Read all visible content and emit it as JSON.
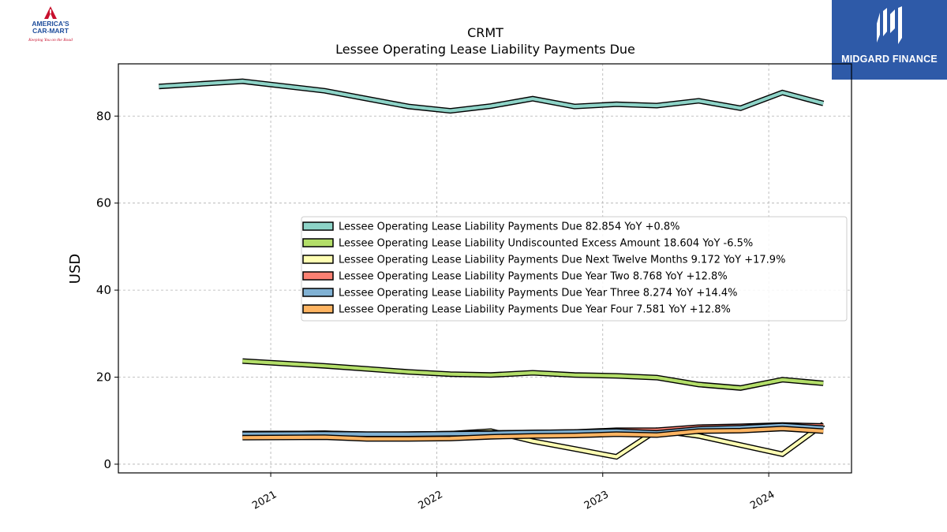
{
  "logos": {
    "left": {
      "brand_lines": [
        "AMERICA'S",
        "CAR-MART"
      ],
      "tagline": "Keeping You on the Road"
    },
    "right": {
      "wordmark": "MIDGARD FINANCE"
    }
  },
  "chart_data": {
    "type": "line",
    "title": "CRMT",
    "subtitle": "Lessee Operating Lease Liability Payments Due",
    "xlabel": "",
    "ylabel": "USD",
    "xlim": [
      "2020-02-01",
      "2024-07-01"
    ],
    "ylim": [
      -2,
      92
    ],
    "yticks": [
      0,
      20,
      40,
      60,
      80
    ],
    "xticks": [
      "2021-01-01",
      "2022-01-01",
      "2023-01-01",
      "2024-01-01"
    ],
    "xtick_labels": [
      "2021",
      "2022",
      "2023",
      "2024"
    ],
    "grid": true,
    "legend_position": "center-right",
    "series": [
      {
        "name": "Lessee Operating Lease Liability Payments Due",
        "legend_label": "Lessee Operating Lease Liability Payments Due  82.854 YoY +0.8%",
        "color": "#8dd3c7",
        "x": [
          "2020-04-30",
          "2020-10-31",
          "2021-04-30",
          "2021-07-31",
          "2021-10-31",
          "2022-01-31",
          "2022-04-30",
          "2022-07-31",
          "2022-10-31",
          "2023-01-31",
          "2023-04-30",
          "2023-07-31",
          "2023-10-31",
          "2024-01-31",
          "2024-04-30"
        ],
        "values": [
          86.8,
          88.0,
          85.8,
          84.0,
          82.2,
          81.2,
          82.3,
          84.0,
          82.2,
          82.7,
          82.4,
          83.5,
          81.8,
          85.4,
          82.9
        ]
      },
      {
        "name": "Lessee Operating Lease Liability Undiscounted Excess Amount",
        "legend_label": "Lessee Operating Lease Liability Undiscounted Excess Amount  18.604 YoY -6.5%",
        "color": "#b3de69",
        "x": [
          "2020-10-31",
          "2021-04-30",
          "2021-07-31",
          "2021-10-31",
          "2022-01-31",
          "2022-04-30",
          "2022-07-31",
          "2022-10-31",
          "2023-01-31",
          "2023-04-30",
          "2023-07-31",
          "2023-10-31",
          "2024-01-31",
          "2024-04-30"
        ],
        "values": [
          23.7,
          22.6,
          21.9,
          21.2,
          20.7,
          20.5,
          21.0,
          20.5,
          20.3,
          19.9,
          18.3,
          17.5,
          19.4,
          18.6
        ]
      },
      {
        "name": "Lessee Operating Lease Liability Payments Due Next Twelve Months",
        "legend_label": "Lessee Operating Lease Liability Payments Due Next Twelve Months  9.172 YoY +17.9%",
        "color": "#ffffb3",
        "x": [
          "2020-10-31",
          "2021-04-30",
          "2021-07-31",
          "2021-10-31",
          "2022-01-31",
          "2022-04-30",
          "2022-07-31",
          "2022-10-31",
          "2023-01-31",
          "2023-04-30",
          "2023-07-31",
          "2023-10-31",
          "2024-01-31",
          "2024-04-30"
        ],
        "values": [
          7.0,
          7.1,
          6.8,
          6.9,
          7.0,
          7.6,
          5.3,
          3.5,
          1.7,
          7.8,
          6.5,
          4.4,
          2.3,
          9.2
        ]
      },
      {
        "name": "Lessee Operating Lease Liability Payments Due Year Two",
        "legend_label": "Lessee Operating Lease Liability Payments Due Year Two  8.768 YoY +12.8%",
        "color": "#fb8072",
        "x": [
          "2020-10-31",
          "2021-04-30",
          "2021-07-31",
          "2021-10-31",
          "2022-01-31",
          "2022-04-30",
          "2022-07-31",
          "2022-10-31",
          "2023-01-31",
          "2023-04-30",
          "2023-07-31",
          "2023-10-31",
          "2024-01-31",
          "2024-04-30"
        ],
        "values": [
          7.0,
          7.1,
          6.9,
          6.9,
          7.0,
          7.2,
          7.3,
          7.4,
          7.8,
          7.8,
          8.5,
          8.7,
          9.0,
          8.8
        ]
      },
      {
        "name": "Lessee Operating Lease Liability Payments Due Year Three",
        "legend_label": "Lessee Operating Lease Liability Payments Due Year Three  8.274 YoY +14.4%",
        "color": "#80b1d3",
        "x": [
          "2020-10-31",
          "2021-04-30",
          "2021-07-31",
          "2021-10-31",
          "2022-01-31",
          "2022-04-30",
          "2022-07-31",
          "2022-10-31",
          "2023-01-31",
          "2023-04-30",
          "2023-07-31",
          "2023-10-31",
          "2024-01-31",
          "2024-04-30"
        ],
        "values": [
          6.9,
          7.0,
          6.9,
          6.9,
          7.0,
          7.1,
          7.3,
          7.4,
          7.6,
          7.2,
          8.1,
          8.4,
          8.9,
          8.3
        ]
      },
      {
        "name": "Lessee Operating Lease Liability Payments Due Year Four",
        "legend_label": "Lessee Operating Lease Liability Payments Due Year Four  7.581 YoY +12.8%",
        "color": "#fdb462",
        "x": [
          "2020-10-31",
          "2021-04-30",
          "2021-07-31",
          "2021-10-31",
          "2022-01-31",
          "2022-04-30",
          "2022-07-31",
          "2022-10-31",
          "2023-01-31",
          "2023-04-30",
          "2023-07-31",
          "2023-10-31",
          "2024-01-31",
          "2024-04-30"
        ],
        "values": [
          6.1,
          6.2,
          5.8,
          5.8,
          5.9,
          6.3,
          6.5,
          6.6,
          6.9,
          6.7,
          7.6,
          7.7,
          8.2,
          7.6
        ]
      }
    ]
  }
}
